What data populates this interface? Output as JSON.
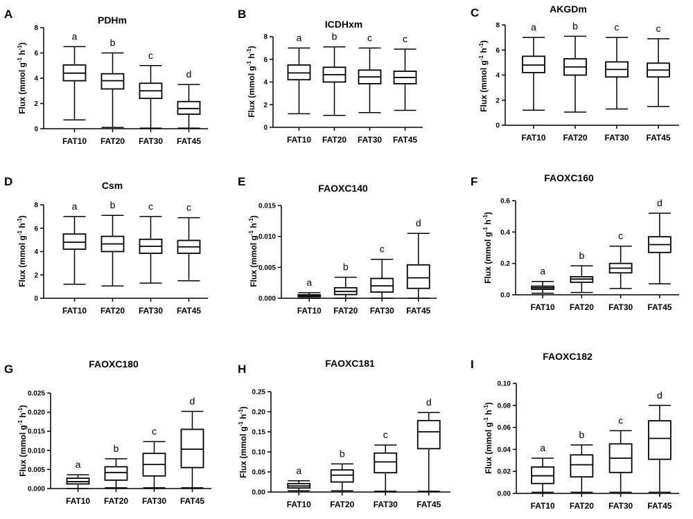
{
  "ylabel_main": "Flux (mmol g",
  "ylabel_sup1": "-1",
  "ylabel_mid": " h",
  "ylabel_sup2": "-1",
  "ylabel_end": ")",
  "chart_data": [
    {
      "letter": "A",
      "title": "PDHm",
      "type": "box",
      "categories": [
        "FAT10",
        "FAT20",
        "FAT30",
        "FAT45"
      ],
      "ylim": [
        0,
        8
      ],
      "yticks": [
        "0",
        "2",
        "4",
        "6",
        "8"
      ],
      "boxes": [
        [
          0.7,
          3.8,
          4.4,
          5.05,
          6.5
        ],
        [
          0.1,
          3.15,
          3.8,
          4.35,
          6.0
        ],
        [
          0.05,
          2.4,
          3.0,
          3.6,
          5.0
        ],
        [
          0.05,
          1.15,
          1.6,
          2.15,
          3.5
        ]
      ],
      "sig": [
        "a",
        "b",
        "c",
        "d"
      ]
    },
    {
      "letter": "B",
      "title": "ICDHxm",
      "type": "box",
      "categories": [
        "FAT10",
        "FAT20",
        "FAT30",
        "FAT45"
      ],
      "ylim": [
        0,
        8
      ],
      "yticks": [
        "0",
        "2",
        "4",
        "6",
        "8"
      ],
      "boxes": [
        [
          1.2,
          4.2,
          4.8,
          5.5,
          7.0
        ],
        [
          1.05,
          4.0,
          4.65,
          5.3,
          7.1
        ],
        [
          1.3,
          3.85,
          4.45,
          5.05,
          7.0
        ],
        [
          1.5,
          3.85,
          4.4,
          4.95,
          6.9
        ]
      ],
      "sig": [
        "a",
        "b",
        "c",
        "c"
      ]
    },
    {
      "letter": "C",
      "title": "AKGDm",
      "type": "box",
      "categories": [
        "FAT10",
        "FAT20",
        "FAT30",
        "FAT45"
      ],
      "ylim": [
        0,
        8
      ],
      "yticks": [
        "0",
        "2",
        "4",
        "6",
        "8"
      ],
      "boxes": [
        [
          1.2,
          4.2,
          4.8,
          5.5,
          7.0
        ],
        [
          1.05,
          4.0,
          4.65,
          5.3,
          7.1
        ],
        [
          1.3,
          3.85,
          4.45,
          5.05,
          7.0
        ],
        [
          1.5,
          3.85,
          4.4,
          4.95,
          6.9
        ]
      ],
      "sig": [
        "a",
        "b",
        "c",
        "c"
      ]
    },
    {
      "letter": "D",
      "title": "Csm",
      "type": "box",
      "categories": [
        "FAT10",
        "FAT20",
        "FAT30",
        "FAT45"
      ],
      "ylim": [
        0,
        8
      ],
      "yticks": [
        "0",
        "2",
        "4",
        "6",
        "8"
      ],
      "boxes": [
        [
          1.2,
          4.2,
          4.8,
          5.5,
          7.0
        ],
        [
          1.05,
          4.0,
          4.65,
          5.3,
          7.1
        ],
        [
          1.3,
          3.85,
          4.45,
          5.05,
          7.0
        ],
        [
          1.5,
          3.85,
          4.4,
          4.95,
          6.9
        ]
      ],
      "sig": [
        "a",
        "b",
        "c",
        "c"
      ]
    },
    {
      "letter": "E",
      "title": "FAOXC140",
      "type": "box",
      "categories": [
        "FAT10",
        "FAT20",
        "FAT30",
        "FAT45"
      ],
      "ylim": [
        0,
        0.015
      ],
      "yticks": [
        "0.000",
        "0.005",
        "0.010",
        "0.015"
      ],
      "boxes": [
        [
          0.0,
          0.00025,
          0.0004,
          0.00055,
          0.0009
        ],
        [
          0.0,
          0.0006,
          0.0011,
          0.0017,
          0.0034
        ],
        [
          0.0,
          0.001,
          0.002,
          0.0032,
          0.0063
        ],
        [
          0.0,
          0.0016,
          0.0033,
          0.0054,
          0.0105
        ]
      ],
      "sig": [
        "a",
        "b",
        "c",
        "d"
      ]
    },
    {
      "letter": "F",
      "title": "FAOXC160",
      "type": "box",
      "categories": [
        "FAT10",
        "FAT20",
        "FAT30",
        "FAT45"
      ],
      "ylim": [
        0,
        0.6
      ],
      "yticks": [
        "0.0",
        "0.2",
        "0.4",
        "0.6"
      ],
      "boxes": [
        [
          0.01,
          0.035,
          0.045,
          0.055,
          0.085
        ],
        [
          0.015,
          0.08,
          0.1,
          0.115,
          0.185
        ],
        [
          0.04,
          0.14,
          0.17,
          0.2,
          0.31
        ],
        [
          0.07,
          0.27,
          0.32,
          0.37,
          0.52
        ]
      ],
      "sig": [
        "a",
        "b",
        "c",
        "d"
      ]
    },
    {
      "letter": "G",
      "title": "FAOXC180",
      "type": "box",
      "categories": [
        "FAT10",
        "FAT20",
        "FAT30",
        "FAT45"
      ],
      "ylim": [
        0,
        0.025
      ],
      "yticks": [
        "0.000",
        "0.005",
        "0.010",
        "0.015",
        "0.020",
        "0.025"
      ],
      "boxes": [
        [
          0.0,
          0.0012,
          0.0018,
          0.0027,
          0.0036
        ],
        [
          0.0002,
          0.0022,
          0.0042,
          0.0057,
          0.0078
        ],
        [
          0.0002,
          0.0033,
          0.0063,
          0.0092,
          0.0123
        ],
        [
          0.0002,
          0.0055,
          0.0103,
          0.0155,
          0.0202
        ]
      ],
      "sig": [
        "a",
        "b",
        "c",
        "d"
      ]
    },
    {
      "letter": "H",
      "title": "FAOXC181",
      "type": "box",
      "categories": [
        "FAT10",
        "FAT20",
        "FAT30",
        "FAT45"
      ],
      "ylim": [
        0,
        0.25
      ],
      "yticks": [
        "0.00",
        "0.05",
        "0.10",
        "0.15",
        "0.20",
        "0.25"
      ],
      "boxes": [
        [
          0.003,
          0.01,
          0.015,
          0.021,
          0.028
        ],
        [
          0.003,
          0.025,
          0.042,
          0.055,
          0.07
        ],
        [
          0.002,
          0.048,
          0.075,
          0.097,
          0.117
        ],
        [
          0.002,
          0.108,
          0.15,
          0.178,
          0.198
        ]
      ],
      "sig": [
        "a",
        "b",
        "c",
        "d"
      ]
    },
    {
      "letter": "I",
      "title": "FAOXC182",
      "type": "box",
      "categories": [
        "FAT10",
        "FAT20",
        "FAT30",
        "FAT45"
      ],
      "ylim": [
        0,
        0.1
      ],
      "yticks": [
        "0.00",
        "0.02",
        "0.04",
        "0.06",
        "0.08",
        "0.10"
      ],
      "boxes": [
        [
          0.001,
          0.009,
          0.016,
          0.024,
          0.032
        ],
        [
          0.001,
          0.015,
          0.026,
          0.035,
          0.044
        ],
        [
          0.001,
          0.019,
          0.032,
          0.045,
          0.057
        ],
        [
          0.001,
          0.031,
          0.05,
          0.066,
          0.08
        ]
      ],
      "sig": [
        "a",
        "b",
        "c",
        "d"
      ]
    }
  ]
}
